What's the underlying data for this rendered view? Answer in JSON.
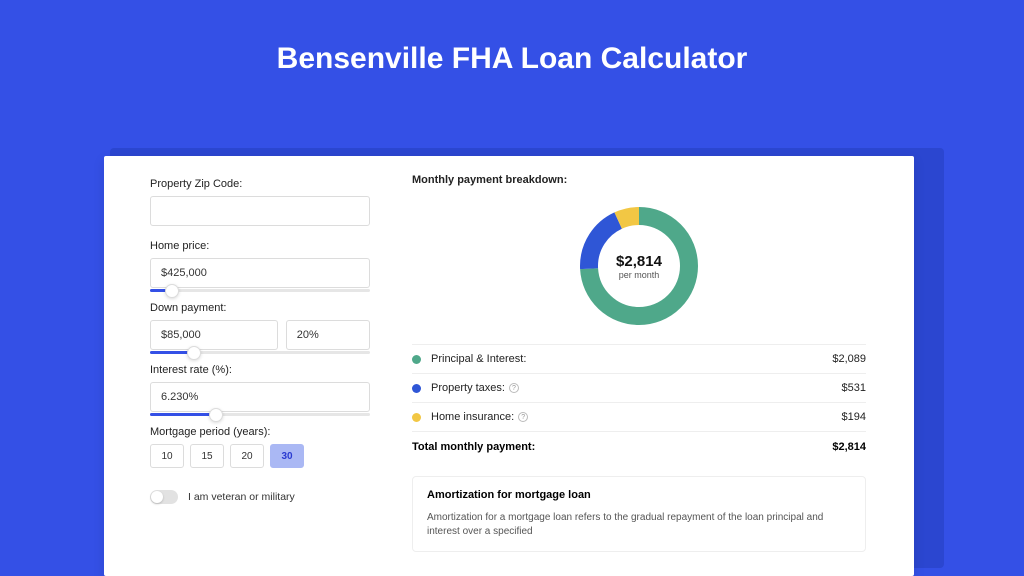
{
  "title": "Bensenville FHA Loan Calculator",
  "colors": {
    "page_bg": "#3450e6",
    "card_bg": "#ffffff",
    "accent": "#3450e6",
    "text": "#222222"
  },
  "form": {
    "zip_label": "Property Zip Code:",
    "zip_value": "",
    "home_price_label": "Home price:",
    "home_price_value": "$425,000",
    "home_price_slider_pct": 10,
    "down_payment_label": "Down payment:",
    "down_payment_value": "$85,000",
    "down_payment_pct": "20%",
    "down_payment_slider_pct": 20,
    "interest_label": "Interest rate (%):",
    "interest_value": "6.230%",
    "interest_slider_pct": 30,
    "period_label": "Mortgage period (years):",
    "periods": [
      "10",
      "15",
      "20",
      "30"
    ],
    "period_selected": "30",
    "veteran_label": "I am veteran or military",
    "veteran_on": false
  },
  "breakdown": {
    "title": "Monthly payment breakdown:",
    "donut": {
      "type": "donut",
      "center_amount": "$2,814",
      "center_sub": "per month",
      "stroke_width": 18,
      "radius": 50,
      "segments": [
        {
          "label": "Principal & Interest:",
          "value": "$2,089",
          "pct": 74,
          "color": "#4fa88a"
        },
        {
          "label": "Property taxes:",
          "value": "$531",
          "pct": 19,
          "color": "#2f56d6",
          "info": true
        },
        {
          "label": "Home insurance:",
          "value": "$194",
          "pct": 7,
          "color": "#f2c744",
          "info": true
        }
      ]
    },
    "total_label": "Total monthly payment:",
    "total_value": "$2,814"
  },
  "amortization": {
    "title": "Amortization for mortgage loan",
    "text": "Amortization for a mortgage loan refers to the gradual repayment of the loan principal and interest over a specified"
  }
}
